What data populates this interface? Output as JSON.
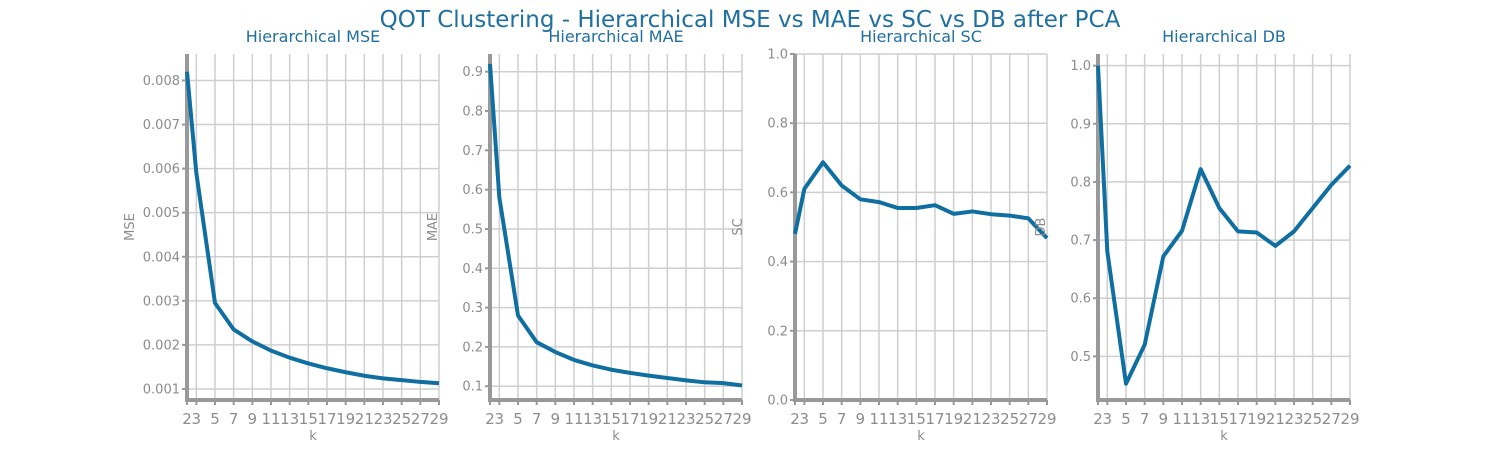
{
  "figure": {
    "suptitle": "QOT Clustering - Hierarchical MSE vs MAE vs SC vs DB after PCA",
    "line_color": "#0f6fa0",
    "grid_color": "#cfcfcf",
    "axis_color": "#999999"
  },
  "chart_data": [
    {
      "type": "line",
      "title": "Hierarchical MSE",
      "xlabel": "k",
      "ylabel": "MSE",
      "x": [
        2,
        3,
        5,
        7,
        9,
        11,
        13,
        15,
        17,
        19,
        21,
        23,
        25,
        27,
        29
      ],
      "xticks": [
        "2",
        "3",
        "5",
        "7",
        "9",
        "11",
        "13",
        "15",
        "17",
        "19",
        "21",
        "23",
        "25",
        "27",
        "29"
      ],
      "yticks": [
        "0.001",
        "0.002",
        "0.003",
        "0.004",
        "0.005",
        "0.006",
        "0.007",
        "0.008"
      ],
      "ylim": [
        0.00075,
        0.0086
      ],
      "grid": true,
      "series": [
        {
          "values": [
            0.0082,
            0.0059,
            0.00295,
            0.00235,
            0.00208,
            0.00187,
            0.00171,
            0.00158,
            0.00147,
            0.00138,
            0.0013,
            0.00124,
            0.0012,
            0.00116,
            0.00113
          ]
        }
      ]
    },
    {
      "type": "line",
      "title": "Hierarchical MAE",
      "xlabel": "k",
      "ylabel": "MAE",
      "x": [
        2,
        3,
        5,
        7,
        9,
        11,
        13,
        15,
        17,
        19,
        21,
        23,
        25,
        27,
        29
      ],
      "xticks": [
        "2",
        "3",
        "5",
        "7",
        "9",
        "11",
        "13",
        "15",
        "17",
        "19",
        "21",
        "23",
        "25",
        "27",
        "29"
      ],
      "yticks": [
        "0.1",
        "0.2",
        "0.3",
        "0.4",
        "0.5",
        "0.6",
        "0.7",
        "0.8",
        "0.9"
      ],
      "ylim": [
        0.065,
        0.945
      ],
      "grid": true,
      "series": [
        {
          "values": [
            0.92,
            0.58,
            0.28,
            0.212,
            0.187,
            0.167,
            0.153,
            0.142,
            0.134,
            0.127,
            0.121,
            0.115,
            0.11,
            0.108,
            0.102
          ]
        }
      ]
    },
    {
      "type": "line",
      "title": "Hierarchical SC",
      "xlabel": "k",
      "ylabel": "SC",
      "x": [
        2,
        3,
        5,
        7,
        9,
        11,
        13,
        15,
        17,
        19,
        21,
        23,
        25,
        27,
        29
      ],
      "xticks": [
        "2",
        "3",
        "5",
        "7",
        "9",
        "11",
        "13",
        "15",
        "17",
        "19",
        "21",
        "23",
        "25",
        "27",
        "29"
      ],
      "yticks": [
        "0.0",
        "0.2",
        "0.4",
        "0.6",
        "0.8",
        "1.0"
      ],
      "ylim": [
        0,
        1.0
      ],
      "grid": true,
      "series": [
        {
          "values": [
            0.48,
            0.61,
            0.687,
            0.62,
            0.58,
            0.572,
            0.555,
            0.555,
            0.563,
            0.538,
            0.545,
            0.537,
            0.533,
            0.525,
            0.468
          ]
        }
      ]
    },
    {
      "type": "line",
      "title": "Hierarchical DB",
      "xlabel": "k",
      "ylabel": "DB",
      "x": [
        2,
        3,
        5,
        7,
        9,
        11,
        13,
        15,
        17,
        19,
        21,
        23,
        25,
        27,
        29
      ],
      "xticks": [
        "2",
        "3",
        "5",
        "7",
        "9",
        "11",
        "13",
        "15",
        "17",
        "19",
        "21",
        "23",
        "25",
        "27",
        "29"
      ],
      "yticks": [
        "0.5",
        "0.6",
        "0.7",
        "0.8",
        "0.9",
        "1.0"
      ],
      "ylim": [
        0.425,
        1.02
      ],
      "grid": true,
      "series": [
        {
          "values": [
            1.0,
            0.68,
            0.453,
            0.52,
            0.672,
            0.716,
            0.822,
            0.755,
            0.715,
            0.713,
            0.69,
            0.715,
            0.755,
            0.795,
            0.828
          ]
        }
      ]
    }
  ]
}
